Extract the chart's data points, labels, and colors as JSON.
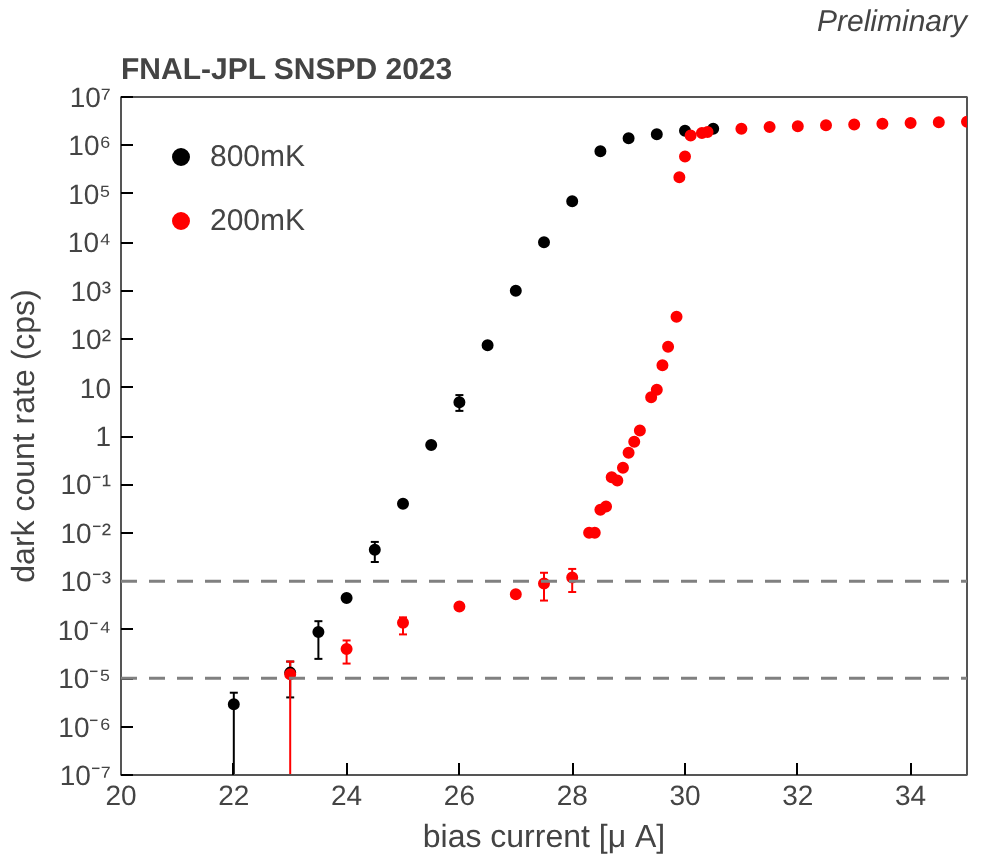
{
  "chart_data": {
    "type": "scatter",
    "title": "FNAL-JPL SNSPD 2023",
    "xlabel": "bias current [μ A]",
    "ylabel": "dark count rate (cps)",
    "annotations": [
      "Preliminary"
    ],
    "log": "y",
    "grid": false,
    "legend": "top left",
    "marker": "circle",
    "xlim": [
      20,
      35
    ],
    "xticks": [
      20,
      22,
      24,
      26,
      28,
      30,
      32,
      34
    ],
    "ylim": [
      1e-07,
      10000000.0
    ],
    "yticks": [
      {
        "value": 1e-07,
        "label": "10⁻⁷"
      },
      {
        "value": 1e-06,
        "label": "10⁻⁶"
      },
      {
        "value": 1e-05,
        "label": "10⁻⁵"
      },
      {
        "value": 0.0001,
        "label": "10⁻⁴"
      },
      {
        "value": 0.001,
        "label": "10⁻³"
      },
      {
        "value": 0.01,
        "label": "10⁻²"
      },
      {
        "value": 0.1,
        "label": "10⁻¹"
      },
      1,
      10,
      {
        "value": 100,
        "label": "10²"
      },
      {
        "value": 1000,
        "label": "10³"
      },
      {
        "value": 10000,
        "label": "10⁴"
      },
      {
        "value": 100000,
        "label": "10⁵"
      },
      {
        "value": 1000000,
        "label": "10⁶"
      },
      {
        "value": 10000000,
        "label": "10⁷"
      }
    ],
    "ref_lines": [
      {
        "axis": "y",
        "value": 0.001,
        "color": "#808080",
        "line_style": "dashed"
      },
      {
        "axis": "y",
        "value": 1e-05,
        "color": "#808080",
        "line_style": "dashed"
      }
    ],
    "series": [
      {
        "name": "800mK",
        "color": "#000000",
        "x": [
          22,
          23,
          23.5,
          24,
          24.5,
          25,
          25.5,
          26,
          26.5,
          27,
          27.5,
          28,
          28.5,
          29,
          29.5,
          30,
          30.5
        ],
        "values": [
          2.9e-06,
          1.3e-05,
          9e-05,
          0.00045,
          0.0045,
          0.04,
          0.65,
          5,
          75,
          1000,
          10000,
          70000,
          760000,
          1400000,
          1700000,
          2000000,
          2200000
        ],
        "errors": [
          [
            1e-07,
            5e-06
          ],
          [
            4e-06,
            2.2e-05
          ],
          [
            2.5e-05,
            0.00015
          ],
          null,
          [
            0.0025,
            0.0065
          ],
          null,
          null,
          [
            3.3,
            7
          ],
          null,
          null,
          null,
          null,
          null,
          null,
          null,
          null,
          null
        ]
      },
      {
        "name": "200mK",
        "color": "#ff0000",
        "x": [
          23,
          24,
          25,
          26,
          27,
          27.5,
          28,
          28.3,
          28.4,
          28.5,
          28.6,
          28.7,
          28.8,
          28.9,
          29.0,
          29.1,
          29.2,
          29.4,
          29.5,
          29.6,
          29.7,
          29.85,
          29.9,
          30.0,
          30.1,
          30.3,
          30.4,
          31.0,
          31.5,
          32.0,
          32.5,
          33.0,
          33.5,
          34.0,
          34.5,
          35.0
        ],
        "values": [
          1.2e-05,
          4e-05,
          0.00014,
          0.0003,
          0.00054,
          0.0009,
          0.0012,
          0.01,
          0.01,
          0.03,
          0.035,
          0.14,
          0.12,
          0.22,
          0.45,
          0.76,
          1.3,
          6.3,
          9,
          29,
          70,
          290,
          220000,
          590000,
          1600000,
          1800000,
          1900000,
          2200000,
          2400000,
          2500000,
          2600000,
          2700000,
          2800000,
          2900000,
          3000000,
          3100000
        ],
        "errors": [
          [
            1e-07,
            2.2e-05
          ],
          [
            2e-05,
            6e-05
          ],
          [
            8e-05,
            0.00018
          ],
          null,
          null,
          [
            0.0004,
            0.0015
          ],
          [
            0.0006,
            0.0018
          ],
          null,
          null,
          null,
          null,
          null,
          null,
          null,
          null,
          null,
          null,
          null,
          null,
          null,
          null,
          null,
          null,
          null,
          null,
          null,
          null,
          null,
          null,
          null,
          null,
          null,
          null,
          null,
          null,
          null
        ]
      }
    ]
  }
}
